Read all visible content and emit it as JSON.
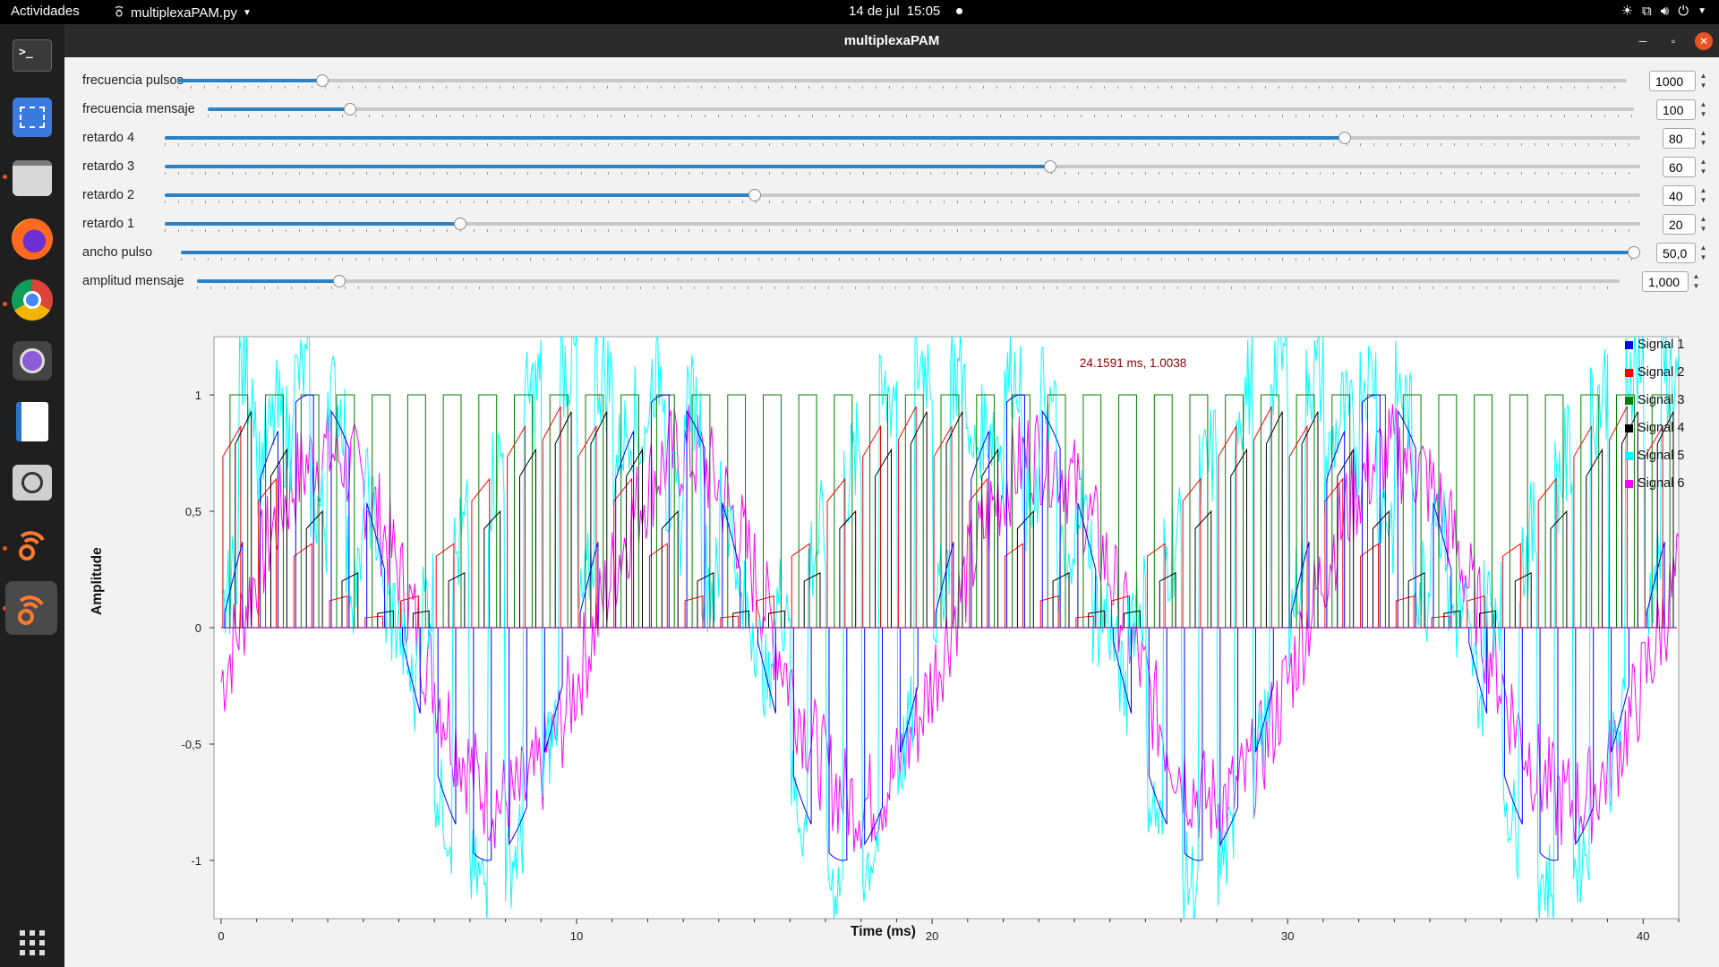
{
  "topbar": {
    "activities": "Actividades",
    "app_name": "multiplexaPAM.py",
    "date": "14 de jul",
    "time": "15:05"
  },
  "dock": {
    "items": [
      {
        "name": "terminal-icon"
      },
      {
        "name": "screenshot-icon"
      },
      {
        "name": "files-icon"
      },
      {
        "name": "firefox-icon"
      },
      {
        "name": "chrome-icon"
      },
      {
        "name": "camera-icon"
      },
      {
        "name": "writer-icon"
      },
      {
        "name": "magnifier-icon"
      },
      {
        "name": "gnuradio-icon"
      },
      {
        "name": "gnuradio-active-icon"
      },
      {
        "name": "app-grid-icon"
      }
    ]
  },
  "window": {
    "title": "multiplexaPAM"
  },
  "controls": [
    {
      "label": "frecuencia pulsos",
      "value": "1000",
      "fraction": 0.1
    },
    {
      "label": "frecuencia mensaje",
      "value": "100",
      "fraction": 0.1
    },
    {
      "label": "retardo 4",
      "value": "80",
      "fraction": 0.8
    },
    {
      "label": "retardo 3",
      "value": "60",
      "fraction": 0.6
    },
    {
      "label": "retardo 2",
      "value": "40",
      "fraction": 0.4
    },
    {
      "label": "retardo 1",
      "value": "20",
      "fraction": 0.2
    },
    {
      "label": "ancho pulso",
      "value": "50,0",
      "fraction": 1.0
    },
    {
      "label": "amplitud mensaje",
      "value": "1,000",
      "fraction": 0.1
    }
  ],
  "plot": {
    "cursor_readout": "24.1591 ms, 1.0038",
    "legend": [
      {
        "name": "Signal 1",
        "color": "#0000ff"
      },
      {
        "name": "Signal 2",
        "color": "#ff0000"
      },
      {
        "name": "Signal 3",
        "color": "#008000"
      },
      {
        "name": "Signal 4",
        "color": "#000000"
      },
      {
        "name": "Signal 5",
        "color": "#00ffff"
      },
      {
        "name": "Signal 6",
        "color": "#ff00ff"
      }
    ]
  },
  "chart_data": {
    "type": "line",
    "xlabel": "Time (ms)",
    "ylabel": "Amplitude",
    "xlim": [
      -0.2,
      41
    ],
    "ylim": [
      -1.25,
      1.25
    ],
    "x_ticks": [
      0,
      10,
      20,
      30,
      40
    ],
    "x_tick_labels": [
      "0",
      "10",
      "20",
      "30",
      "40"
    ],
    "y_ticks": [
      1,
      0.5,
      0,
      -0.5,
      -1
    ],
    "y_tick_labels": [
      "1",
      "0,5",
      "0",
      "-0,5",
      "-1"
    ],
    "pulse_period_ms": 1.0,
    "message_period_ms": 10.0,
    "series": [
      {
        "name": "Signal 1",
        "color": "#0000ff",
        "kind": "sampled message, pulse width 50%"
      },
      {
        "name": "Signal 2",
        "color": "#ff0000",
        "kind": "delayed samples 20%"
      },
      {
        "name": "Signal 3",
        "color": "#008000",
        "kind": "pulse train 0-1"
      },
      {
        "name": "Signal 4",
        "color": "#000000",
        "kind": "delayed samples 80%"
      },
      {
        "name": "Signal 5",
        "color": "#00ffff",
        "kind": "noisy sampled message"
      },
      {
        "name": "Signal 6",
        "color": "#ff00ff",
        "kind": "noisy message"
      }
    ]
  }
}
